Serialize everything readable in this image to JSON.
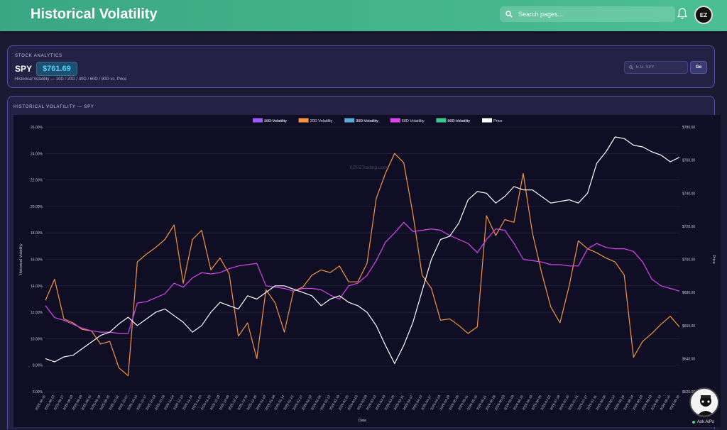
{
  "header": {
    "title": "Historical Volatility",
    "search_placeholder": "Search pages...",
    "avatar_text": "EZ"
  },
  "info": {
    "eyebrow": "STOCK ANALYTICS",
    "ticker": "SPY",
    "price": "$761.69",
    "subtitle": "Historical Volatility — 10D / 20D / 30D / 60D / 90D vs. Price",
    "symbol_placeholder": "E.G. SPY",
    "go_label": "Go"
  },
  "chart_section": {
    "title": "HISTORICAL VOLATILITY — SPY"
  },
  "ask_ai": {
    "label": "Ask AIPs"
  },
  "chart_data": {
    "type": "line",
    "watermark": "EZPZTrading.com",
    "xlabel": "Date",
    "ylabel": "Historical Volatility",
    "y2label": "Price",
    "ylim": [
      6,
      26
    ],
    "y2lim": [
      620,
      780
    ],
    "yticks": [
      "26.00%",
      "24.00%",
      "22.00%",
      "20.00%",
      "18.00%",
      "16.00%",
      "14.00%",
      "12.00%",
      "10.00%",
      "8.00%",
      "6.00%"
    ],
    "y2ticks": [
      "$780.00",
      "$760.00",
      "$740.00",
      "$720.00",
      "$700.00",
      "$680.00",
      "$660.00",
      "$640.00",
      "$620.00"
    ],
    "legend": [
      {
        "name": "10D Volatility",
        "color": "#9b5cf6",
        "hidden": true
      },
      {
        "name": "20D Volatility",
        "color": "#f59742",
        "hidden": false
      },
      {
        "name": "30D Volatility",
        "color": "#5aa8d6",
        "hidden": true
      },
      {
        "name": "60D Volatility",
        "color": "#d946ef",
        "hidden": false
      },
      {
        "name": "90D Volatility",
        "color": "#3ec98a",
        "hidden": true
      },
      {
        "name": "Price",
        "color": "#ffffff",
        "hidden": false
      }
    ],
    "x": [
      "2025-08-15",
      "2025-08-22",
      "2025-08-27",
      "2025-09-03",
      "2025-09-09",
      "2025-09-15",
      "2025-09-19",
      "2025-09-25",
      "2025-10-01",
      "2025-10-07",
      "2025-10-13",
      "2025-10-17",
      "2025-10-23",
      "2025-10-29",
      "2025-11-04",
      "2025-11-10",
      "2025-11-14",
      "2025-11-20",
      "2025-11-26",
      "2025-12-03",
      "2025-12-09",
      "2025-12-15",
      "2025-12-19",
      "2025-12-26",
      "2026-01-02",
      "2026-01-08",
      "2026-01-14",
      "2026-01-21",
      "2026-01-27",
      "2026-02-02",
      "2026-02-06",
      "2026-02-12",
      "2026-02-19",
      "2026-02-25",
      "2026-03-03",
      "2026-03-09",
      "2026-03-13",
      "2026-03-19",
      "2026-03-25",
      "2026-03-31",
      "2026-04-07",
      "2026-04-13",
      "2026-04-17",
      "2026-04-23",
      "2026-04-29",
      "2026-05-05",
      "2026-05-11",
      "2026-05-15",
      "2026-05-21",
      "2026-05-28",
      "2026-06-03",
      "2026-06-09",
      "2026-06-15",
      "2026-06-19",
      "2026-06-26",
      "2026-07-02",
      "2026-07-09",
      "2026-07-15",
      "2026-07-21",
      "2026-07-27",
      "2026-07-31",
      "2026-08-06",
      "2026-08-12",
      "2026-08-18",
      "2026-08-24",
      "2026-08-28",
      "2026-09-03",
      "2026-09-10",
      "2026-09-16",
      "2026-09-18"
    ],
    "series": [
      {
        "name": "20D Volatility",
        "axis": "left",
        "color": "#f59742",
        "values": [
          12.9,
          14.5,
          11.5,
          11.2,
          10.7,
          10.6,
          9.6,
          9.8,
          7.8,
          7.2,
          15.8,
          16.4,
          16.9,
          17.5,
          18.6,
          14.2,
          17.5,
          18.2,
          15.2,
          16.1,
          14.9,
          10.2,
          11.2,
          8.5,
          13.7,
          12.7,
          10.5,
          13.6,
          13.9,
          14.8,
          15.2,
          15.0,
          15.5,
          14.3,
          14.3,
          15.7,
          20.6,
          22.5,
          24.0,
          23.3,
          19.4,
          14.8,
          13.8,
          11.4,
          11.5,
          11.0,
          10.4,
          10.9,
          19.3,
          17.8,
          19.0,
          18.8,
          22.5,
          18.0,
          15.0,
          12.4,
          11.2,
          14.0,
          17.4,
          16.8,
          16.5,
          16.1,
          15.8,
          14.8,
          8.6,
          9.8,
          10.4,
          11.1,
          11.7,
          10.9
        ]
      },
      {
        "name": "60D Volatility",
        "axis": "left",
        "color": "#d946ef",
        "values": [
          12.5,
          11.6,
          11.4,
          11.1,
          10.8,
          10.6,
          10.5,
          10.5,
          10.4,
          10.4,
          12.7,
          12.8,
          13.1,
          13.4,
          14.2,
          13.9,
          14.6,
          15.0,
          14.9,
          15.0,
          15.3,
          15.5,
          15.6,
          15.7,
          14.0,
          13.9,
          13.8,
          13.6,
          13.8,
          13.8,
          13.7,
          13.3,
          13.0,
          14.0,
          14.2,
          14.8,
          15.9,
          17.3,
          18.0,
          18.8,
          18.1,
          18.2,
          18.3,
          18.2,
          17.8,
          17.5,
          17.2,
          16.5,
          17.5,
          18.3,
          18.2,
          17.2,
          16.0,
          15.9,
          15.8,
          15.6,
          15.6,
          15.5,
          15.5,
          16.8,
          17.2,
          16.9,
          16.8,
          16.8,
          16.6,
          15.8,
          14.5,
          14.0,
          13.8,
          13.6
        ]
      },
      {
        "name": "Price",
        "axis": "right",
        "color": "#ffffff",
        "values": [
          640,
          638,
          641,
          642,
          646,
          650,
          654,
          656,
          661,
          665,
          660,
          664,
          668,
          670,
          666,
          662,
          656,
          660,
          668,
          674,
          672,
          670,
          678,
          676,
          680,
          684,
          684,
          682,
          680,
          678,
          672,
          676,
          678,
          674,
          672,
          668,
          660,
          648,
          637,
          648,
          662,
          681,
          700,
          712,
          714,
          722,
          736,
          741,
          740,
          734,
          738,
          744,
          742,
          742,
          738,
          734,
          735,
          736,
          734,
          740,
          758,
          765,
          774,
          773,
          769,
          768,
          765,
          763,
          759,
          761.69
        ]
      }
    ]
  }
}
